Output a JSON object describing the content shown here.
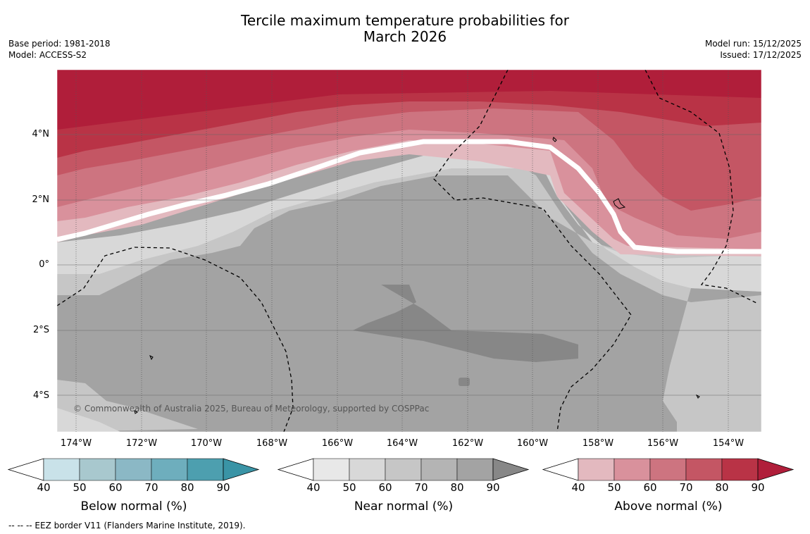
{
  "title": {
    "line1": "Tercile maximum temperature probabilities for",
    "line2": "March 2026"
  },
  "meta": {
    "base_period": "Base period: 1981-2018",
    "model": "Model: ACCESS-S2",
    "model_run": "Model run: 15/12/2025",
    "issued": "Issued: 17/12/2025"
  },
  "map": {
    "lat_labels": [
      "4°N",
      "2°N",
      "0°",
      "2°S",
      "4°S"
    ],
    "lon_labels": [
      "174°W",
      "172°W",
      "170°W",
      "168°W",
      "166°W",
      "164°W",
      "162°W",
      "160°W",
      "158°W",
      "156°W",
      "154°W"
    ],
    "copyright": "© Commonwealth of Australia 2025, Bureau of Meteorology, supported by COSPPac"
  },
  "colorbars": [
    {
      "title": "Below normal (%)",
      "ticks": [
        "40",
        "50",
        "60",
        "70",
        "80",
        "90"
      ],
      "colors": [
        "#ffffff",
        "#c9e2e9",
        "#a8c8ce",
        "#8bb8c5",
        "#6eaebd",
        "#4d9faf",
        "#3a94a6"
      ]
    },
    {
      "title": "Near normal (%)",
      "ticks": [
        "40",
        "50",
        "60",
        "70",
        "80",
        "90"
      ],
      "colors": [
        "#ffffff",
        "#e8e8e8",
        "#d8d8d8",
        "#c6c6c6",
        "#b4b4b4",
        "#a3a3a3",
        "#878787"
      ]
    },
    {
      "title": "Above normal (%)",
      "ticks": [
        "40",
        "50",
        "60",
        "70",
        "80",
        "90"
      ],
      "colors": [
        "#ffffff",
        "#e3b9bf",
        "#d9919c",
        "#cd7480",
        "#c45664",
        "#b93346",
        "#b01e3a"
      ]
    }
  ],
  "footnote": "-- -- -- EEZ border V11 (Flanders Marine Institute, 2019)."
}
